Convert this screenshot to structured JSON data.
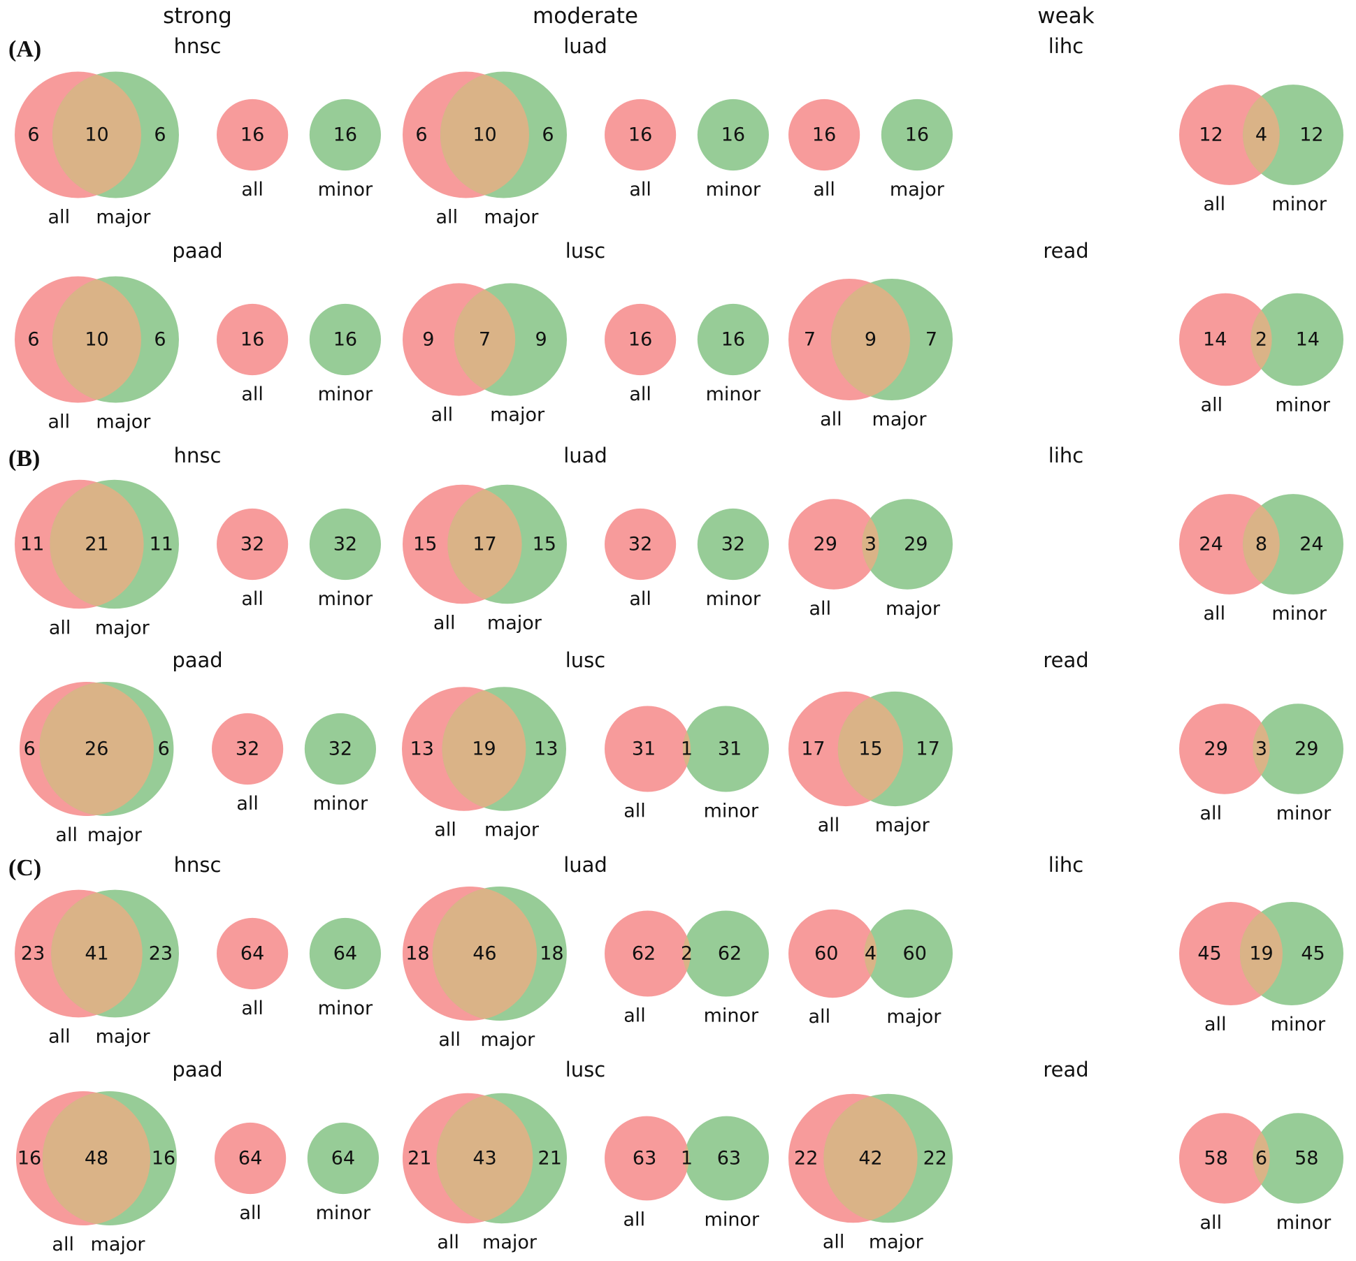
{
  "chart_data": {
    "type": "venn",
    "columns": [
      "strong",
      "moderate",
      "weak"
    ],
    "colors": {
      "left": "#F79B9B",
      "right": "#97CC97",
      "overlap": "#DAB387"
    },
    "panels": [
      {
        "label": "(A)",
        "rows": [
          [
            {
              "title": "hnsc",
              "column": "strong",
              "venns": [
                {
                  "labels": [
                    "all",
                    "major"
                  ],
                  "left_only": 6,
                  "overlap": 10,
                  "right_only": 6
                },
                {
                  "labels": [
                    "all",
                    "minor"
                  ],
                  "left_only": 16,
                  "overlap": 0,
                  "right_only": 16
                }
              ]
            },
            {
              "title": "luad",
              "column": "moderate",
              "venns": [
                {
                  "labels": [
                    "all",
                    "major"
                  ],
                  "left_only": 6,
                  "overlap": 10,
                  "right_only": 6
                },
                {
                  "labels": [
                    "all",
                    "minor"
                  ],
                  "left_only": 16,
                  "overlap": 0,
                  "right_only": 16
                }
              ]
            },
            {
              "title": "lihc",
              "column": "weak",
              "venns": [
                {
                  "labels": [
                    "all",
                    "major"
                  ],
                  "left_only": 16,
                  "overlap": 0,
                  "right_only": 16
                },
                {
                  "labels": [
                    "all",
                    "minor"
                  ],
                  "left_only": 12,
                  "overlap": 4,
                  "right_only": 12
                }
              ]
            }
          ],
          [
            {
              "title": "paad",
              "column": "strong",
              "venns": [
                {
                  "labels": [
                    "all",
                    "major"
                  ],
                  "left_only": 6,
                  "overlap": 10,
                  "right_only": 6
                },
                {
                  "labels": [
                    "all",
                    "minor"
                  ],
                  "left_only": 16,
                  "overlap": 0,
                  "right_only": 16
                }
              ]
            },
            {
              "title": "lusc",
              "column": "moderate",
              "venns": [
                {
                  "labels": [
                    "all",
                    "major"
                  ],
                  "left_only": 9,
                  "overlap": 7,
                  "right_only": 9
                },
                {
                  "labels": [
                    "all",
                    "minor"
                  ],
                  "left_only": 16,
                  "overlap": 0,
                  "right_only": 16
                }
              ]
            },
            {
              "title": "read",
              "column": "weak",
              "venns": [
                {
                  "labels": [
                    "all",
                    "major"
                  ],
                  "left_only": 7,
                  "overlap": 9,
                  "right_only": 7
                },
                {
                  "labels": [
                    "all",
                    "minor"
                  ],
                  "left_only": 14,
                  "overlap": 2,
                  "right_only": 14
                }
              ]
            }
          ]
        ]
      },
      {
        "label": "(B)",
        "rows": [
          [
            {
              "title": "hnsc",
              "column": "strong",
              "venns": [
                {
                  "labels": [
                    "all",
                    "major"
                  ],
                  "left_only": 11,
                  "overlap": 21,
                  "right_only": 11
                },
                {
                  "labels": [
                    "all",
                    "minor"
                  ],
                  "left_only": 32,
                  "overlap": 0,
                  "right_only": 32
                }
              ]
            },
            {
              "title": "luad",
              "column": "moderate",
              "venns": [
                {
                  "labels": [
                    "all",
                    "major"
                  ],
                  "left_only": 15,
                  "overlap": 17,
                  "right_only": 15
                },
                {
                  "labels": [
                    "all",
                    "minor"
                  ],
                  "left_only": 32,
                  "overlap": 0,
                  "right_only": 32
                }
              ]
            },
            {
              "title": "lihc",
              "column": "weak",
              "venns": [
                {
                  "labels": [
                    "all",
                    "major"
                  ],
                  "left_only": 29,
                  "overlap": 3,
                  "right_only": 29
                },
                {
                  "labels": [
                    "all",
                    "minor"
                  ],
                  "left_only": 24,
                  "overlap": 8,
                  "right_only": 24
                }
              ]
            }
          ],
          [
            {
              "title": "paad",
              "column": "strong",
              "venns": [
                {
                  "labels": [
                    "all",
                    "major"
                  ],
                  "left_only": 6,
                  "overlap": 26,
                  "right_only": 6
                },
                {
                  "labels": [
                    "all",
                    "minor"
                  ],
                  "left_only": 32,
                  "overlap": 0,
                  "right_only": 32
                }
              ]
            },
            {
              "title": "lusc",
              "column": "moderate",
              "venns": [
                {
                  "labels": [
                    "all",
                    "major"
                  ],
                  "left_only": 13,
                  "overlap": 19,
                  "right_only": 13
                },
                {
                  "labels": [
                    "all",
                    "minor"
                  ],
                  "left_only": 31,
                  "overlap": 1,
                  "right_only": 31
                }
              ]
            },
            {
              "title": "read",
              "column": "weak",
              "venns": [
                {
                  "labels": [
                    "all",
                    "major"
                  ],
                  "left_only": 17,
                  "overlap": 15,
                  "right_only": 17
                },
                {
                  "labels": [
                    "all",
                    "minor"
                  ],
                  "left_only": 29,
                  "overlap": 3,
                  "right_only": 29
                }
              ]
            }
          ]
        ]
      },
      {
        "label": "(C)",
        "rows": [
          [
            {
              "title": "hnsc",
              "column": "strong",
              "venns": [
                {
                  "labels": [
                    "all",
                    "major"
                  ],
                  "left_only": 23,
                  "overlap": 41,
                  "right_only": 23
                },
                {
                  "labels": [
                    "all",
                    "minor"
                  ],
                  "left_only": 64,
                  "overlap": 0,
                  "right_only": 64
                }
              ]
            },
            {
              "title": "luad",
              "column": "moderate",
              "venns": [
                {
                  "labels": [
                    "all",
                    "major"
                  ],
                  "left_only": 18,
                  "overlap": 46,
                  "right_only": 18
                },
                {
                  "labels": [
                    "all",
                    "minor"
                  ],
                  "left_only": 62,
                  "overlap": 2,
                  "right_only": 62
                }
              ]
            },
            {
              "title": "lihc",
              "column": "weak",
              "venns": [
                {
                  "labels": [
                    "all",
                    "major"
                  ],
                  "left_only": 60,
                  "overlap": 4,
                  "right_only": 60
                },
                {
                  "labels": [
                    "all",
                    "minor"
                  ],
                  "left_only": 45,
                  "overlap": 19,
                  "right_only": 45
                }
              ]
            }
          ],
          [
            {
              "title": "paad",
              "column": "strong",
              "venns": [
                {
                  "labels": [
                    "all",
                    "major"
                  ],
                  "left_only": 16,
                  "overlap": 48,
                  "right_only": 16
                },
                {
                  "labels": [
                    "all",
                    "minor"
                  ],
                  "left_only": 64,
                  "overlap": 0,
                  "right_only": 64
                }
              ]
            },
            {
              "title": "lusc",
              "column": "moderate",
              "venns": [
                {
                  "labels": [
                    "all",
                    "major"
                  ],
                  "left_only": 21,
                  "overlap": 43,
                  "right_only": 21
                },
                {
                  "labels": [
                    "all",
                    "minor"
                  ],
                  "left_only": 63,
                  "overlap": 1,
                  "right_only": 63
                }
              ]
            },
            {
              "title": "read",
              "column": "weak",
              "venns": [
                {
                  "labels": [
                    "all",
                    "major"
                  ],
                  "left_only": 22,
                  "overlap": 42,
                  "right_only": 22
                },
                {
                  "labels": [
                    "all",
                    "minor"
                  ],
                  "left_only": 58,
                  "overlap": 6,
                  "right_only": 58
                }
              ]
            }
          ]
        ]
      }
    ]
  }
}
